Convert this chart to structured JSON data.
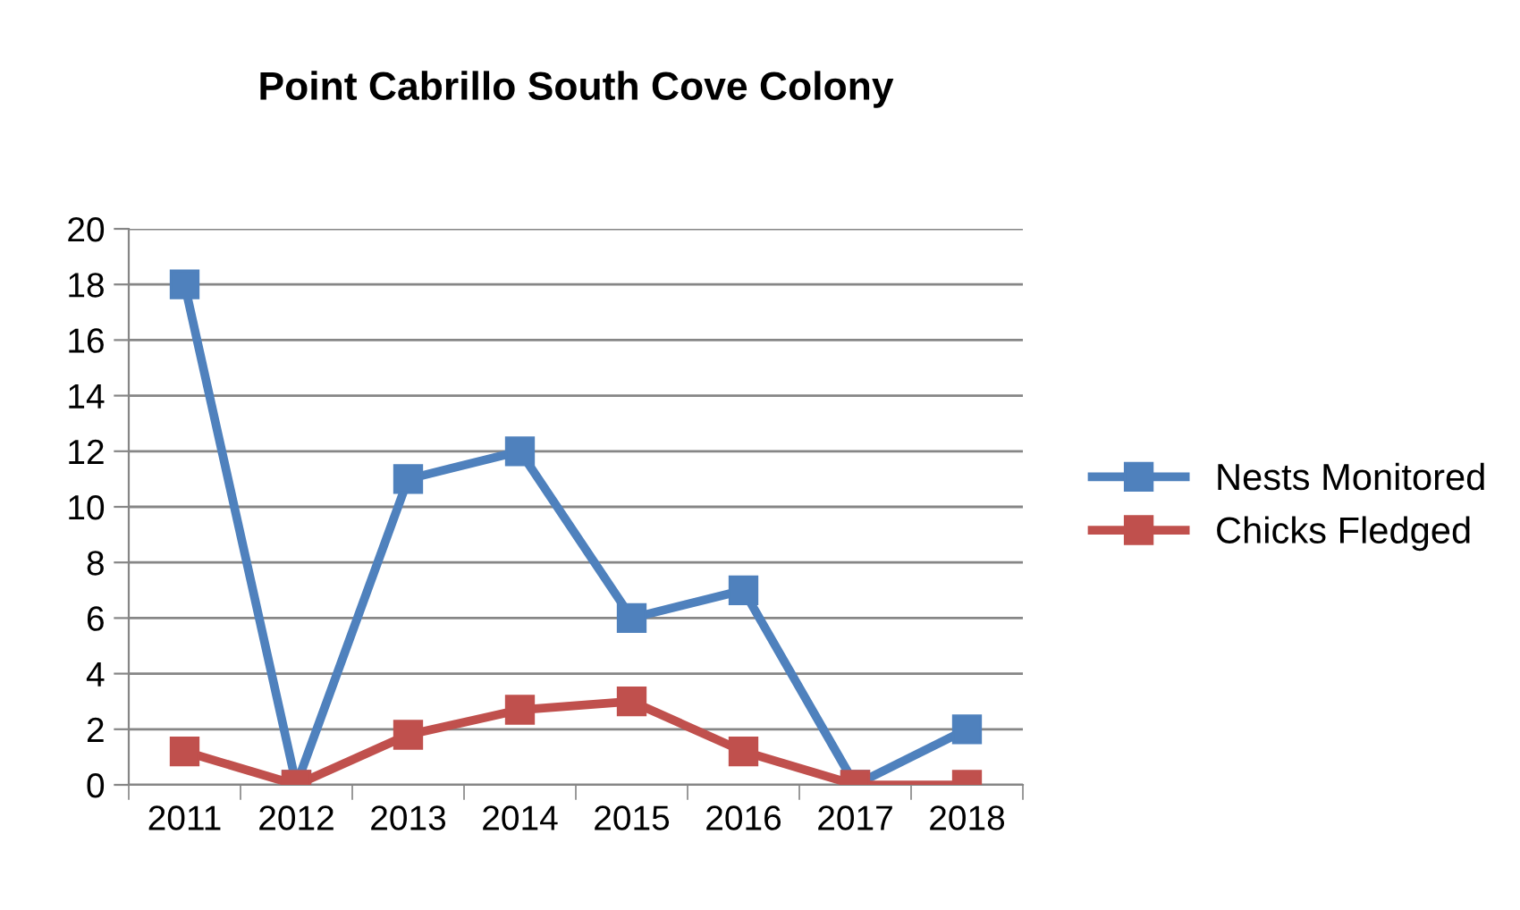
{
  "chart_data": {
    "type": "line",
    "title": "Point Cabrillo South Cove Colony",
    "categories": [
      "2011",
      "2012",
      "2013",
      "2014",
      "2015",
      "2016",
      "2017",
      "2018"
    ],
    "series": [
      {
        "name": "Nests Monitored",
        "color": "#4f81bd",
        "values": [
          18,
          0,
          11,
          12,
          6,
          7,
          0,
          2
        ]
      },
      {
        "name": "Chicks Fledged",
        "color": "#c0504d",
        "values": [
          1.2,
          0,
          1.8,
          2.7,
          3,
          1.2,
          0,
          0
        ]
      }
    ],
    "ylim": [
      0,
      20
    ],
    "yticks": [
      0,
      2,
      4,
      6,
      8,
      10,
      12,
      14,
      16,
      18,
      20
    ],
    "grid": "y",
    "legend": "right",
    "marker": "square",
    "line_style": "solid"
  }
}
